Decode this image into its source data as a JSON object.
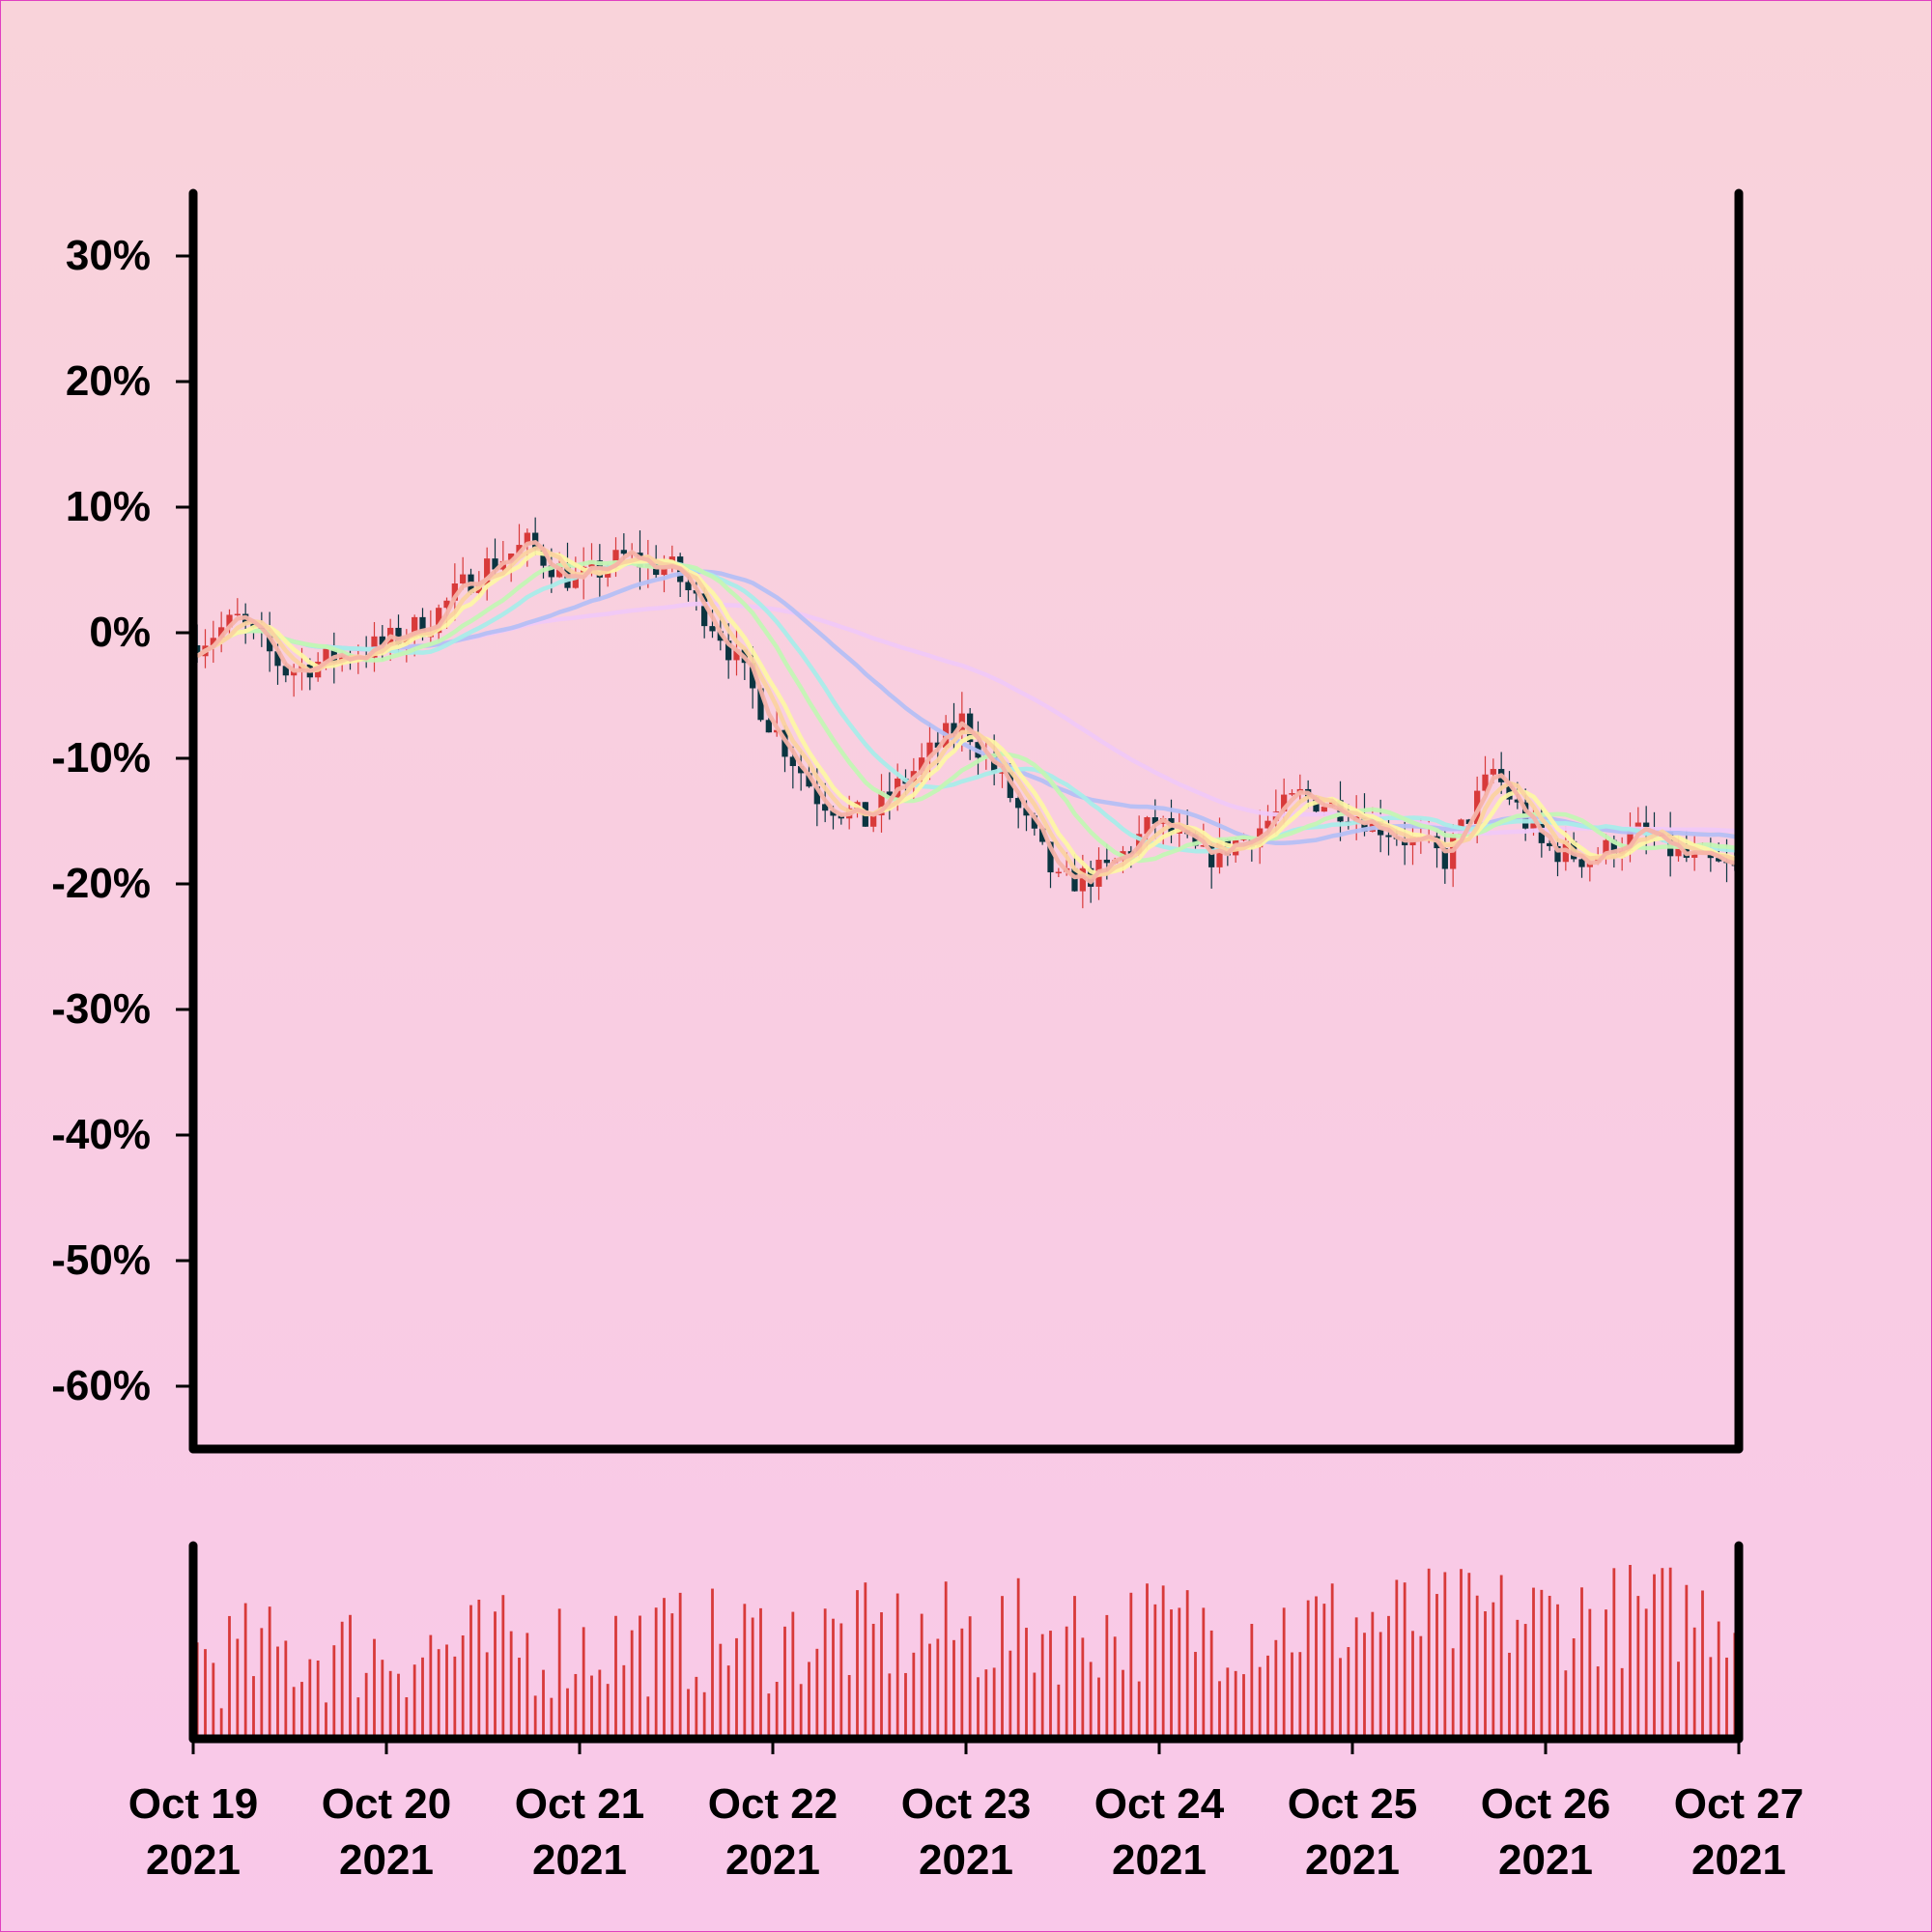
{
  "colors": {
    "background_top": "#f9d3da",
    "background_bottom": "#f9c8e9",
    "border": "#e040c0",
    "axis": "#000000",
    "candle_up": "#d83a3a",
    "candle_down": "#0b3440",
    "volume": "#d83a3a"
  },
  "chart_data": {
    "type": "candlestick",
    "title": "",
    "xlabel": "",
    "ylabel": "",
    "y_unit": "%",
    "ylim": [
      -65,
      35
    ],
    "yticks": [
      30,
      20,
      10,
      0,
      -10,
      -20,
      -30,
      -40,
      -50,
      -60
    ],
    "ytick_labels": [
      "30%",
      "20%",
      "10%",
      "0%",
      "-10%",
      "-20%",
      "-30%",
      "-40%",
      "-50%",
      "-60%"
    ],
    "x_start": "2021-10-19",
    "x_end": "2021-10-27",
    "xticks": [
      {
        "line1": "Oct 19",
        "line2": "2021"
      },
      {
        "line1": "Oct 20",
        "line2": "2021"
      },
      {
        "line1": "Oct 21",
        "line2": "2021"
      },
      {
        "line1": "Oct 22",
        "line2": "2021"
      },
      {
        "line1": "Oct 23",
        "line2": "2021"
      },
      {
        "line1": "Oct 24",
        "line2": "2021"
      },
      {
        "line1": "Oct 25",
        "line2": "2021"
      },
      {
        "line1": "Oct 26",
        "line2": "2021"
      },
      {
        "line1": "Oct 27",
        "line2": "2021"
      }
    ],
    "close_path": [
      [
        "2021-10-19T00:00",
        -1
      ],
      [
        "2021-10-19T06:00",
        1
      ],
      [
        "2021-10-19T12:00",
        -3
      ],
      [
        "2021-10-19T18:00",
        -2
      ],
      [
        "2021-10-20T00:00",
        -1
      ],
      [
        "2021-10-20T06:00",
        1
      ],
      [
        "2021-10-20T12:00",
        5
      ],
      [
        "2021-10-20T18:00",
        7
      ],
      [
        "2021-10-21T00:00",
        4
      ],
      [
        "2021-10-21T06:00",
        6
      ],
      [
        "2021-10-21T12:00",
        5
      ],
      [
        "2021-10-21T18:00",
        0
      ],
      [
        "2021-10-22T00:00",
        -7
      ],
      [
        "2021-10-22T06:00",
        -13
      ],
      [
        "2021-10-22T12:00",
        -15
      ],
      [
        "2021-10-22T18:00",
        -11
      ],
      [
        "2021-10-23T00:00",
        -7
      ],
      [
        "2021-10-23T06:00",
        -13
      ],
      [
        "2021-10-23T12:00",
        -20
      ],
      [
        "2021-10-23T18:00",
        -19
      ],
      [
        "2021-10-24T00:00",
        -15
      ],
      [
        "2021-10-24T06:00",
        -18
      ],
      [
        "2021-10-24T12:00",
        -16
      ],
      [
        "2021-10-24T18:00",
        -13
      ],
      [
        "2021-10-25T00:00",
        -14
      ],
      [
        "2021-10-25T06:00",
        -16
      ],
      [
        "2021-10-25T12:00",
        -18
      ],
      [
        "2021-10-25T18:00",
        -11
      ],
      [
        "2021-10-26T00:00",
        -17
      ],
      [
        "2021-10-26T06:00",
        -18
      ],
      [
        "2021-10-26T12:00",
        -16
      ],
      [
        "2021-10-26T18:00",
        -18
      ],
      [
        "2021-10-27T00:00",
        -19
      ]
    ],
    "moving_averages": [
      {
        "color": "#f6b3a8",
        "window": 3
      },
      {
        "color": "#fbd2a0",
        "window": 5
      },
      {
        "color": "#fdf5a5",
        "window": 7
      },
      {
        "color": "#c3f5b4",
        "window": 14
      },
      {
        "color": "#a9ece9",
        "window": 20
      },
      {
        "color": "#b5bff4",
        "window": 34
      },
      {
        "color": "#f0c8f7",
        "window": 60
      }
    ]
  }
}
